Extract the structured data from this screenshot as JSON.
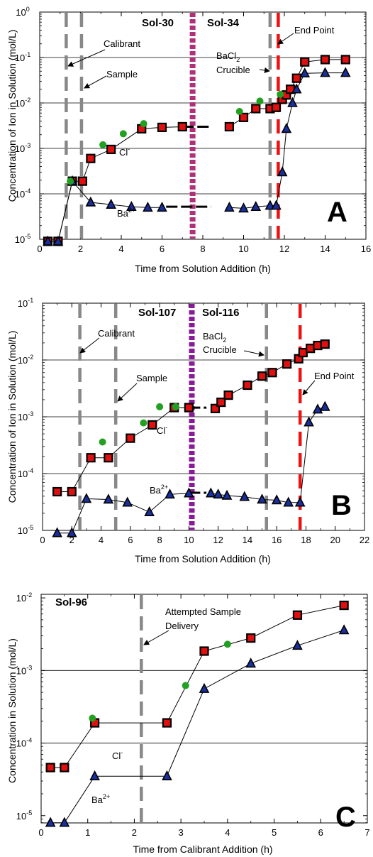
{
  "colors": {
    "cl_marker": "#e01010",
    "ba_marker": "#1a2f9e",
    "green_marker": "#22a022",
    "calibrant_line": "#888888",
    "end_line": "#ee1111",
    "sol_divider": "#b0307a",
    "sol_divider_b": "#8a1a9a"
  },
  "chart_data": [
    {
      "panel": "A",
      "type": "scatter",
      "ylabel": "Concentration of Ion in Solution (mol/L)",
      "xlabel": "Time from Solution Addition (h)",
      "xlim": [
        0,
        16
      ],
      "xticks": [
        0,
        2,
        4,
        6,
        8,
        10,
        12,
        14,
        16
      ],
      "ylim_log10": [
        -5,
        0
      ],
      "yticks": [
        {
          "exp": -5,
          "label": "10",
          "sup": "-5"
        },
        {
          "exp": -4,
          "label": "10",
          "sup": "-4"
        },
        {
          "exp": -3,
          "label": "10",
          "sup": "-3"
        },
        {
          "exp": -2,
          "label": "10",
          "sup": "-2"
        },
        {
          "exp": -1,
          "label": "10",
          "sup": "-1"
        },
        {
          "exp": 0,
          "label": "10",
          "sup": "0"
        }
      ],
      "gridlines_exp": [
        -4,
        -3,
        -2,
        -1
      ],
      "series": [
        {
          "name": "Cl",
          "label_sup": "-",
          "marker": "square",
          "segments": [
            [
              [
                0.4,
                9e-06
              ],
              [
                0.9,
                9e-06
              ],
              [
                1.6,
                0.00019
              ],
              [
                2.1,
                0.00019
              ],
              [
                2.5,
                0.0006
              ],
              [
                3.5,
                0.00095
              ],
              [
                5,
                0.0027
              ],
              [
                6,
                0.0029
              ],
              [
                7,
                0.003
              ]
            ],
            [
              [
                9.3,
                0.003
              ],
              [
                10,
                0.0048
              ],
              [
                10.6,
                0.0075
              ],
              [
                11.3,
                0.0075
              ],
              [
                11.6,
                0.008
              ],
              [
                11.9,
                0.012
              ],
              [
                12.1,
                0.015
              ],
              [
                12.3,
                0.02
              ],
              [
                12.6,
                0.035
              ],
              [
                13,
                0.08
              ],
              [
                14,
                0.09
              ],
              [
                15,
                0.09
              ]
            ]
          ]
        },
        {
          "name": "Ba",
          "label_sup": "2+",
          "marker": "triangle",
          "segments": [
            [
              [
                0.4,
                9e-06
              ],
              [
                0.9,
                9e-06
              ],
              [
                1.6,
                0.00019
              ],
              [
                2.5,
                6.5e-05
              ],
              [
                3.5,
                5.8e-05
              ],
              [
                4.5,
                5.2e-05
              ],
              [
                5.3,
                5e-05
              ],
              [
                6,
                5e-05
              ]
            ],
            [
              [
                9.3,
                5e-05
              ],
              [
                10,
                4.8e-05
              ],
              [
                10.6,
                5.2e-05
              ],
              [
                11.3,
                5.5e-05
              ],
              [
                11.6,
                5.5e-05
              ],
              [
                11.9,
                0.0003
              ],
              [
                12.1,
                0.0027
              ],
              [
                12.4,
                0.01
              ],
              [
                12.6,
                0.02
              ],
              [
                13,
                0.045
              ],
              [
                14,
                0.046
              ],
              [
                15,
                0.046
              ]
            ]
          ]
        },
        {
          "name": "",
          "marker": "circle",
          "segments": [
            [
              [
                1.5,
                0.00019
              ],
              [
                3.1,
                0.0012
              ],
              [
                4.1,
                0.0021
              ],
              [
                5.1,
                0.0035
              ],
              [
                9.8,
                0.0065
              ],
              [
                10.8,
                0.011
              ],
              [
                11.8,
                0.0155
              ]
            ]
          ]
        }
      ],
      "dash_segments": [
        {
          "series": "Cl",
          "x1": 7,
          "x2": 8.3,
          "y": 0.003
        },
        {
          "series": "Ba",
          "x1": 6.2,
          "x2": 8.4,
          "y": 5.2e-05
        }
      ],
      "vlines": [
        {
          "kind": "grey",
          "x": 1.3
        },
        {
          "kind": "grey",
          "x": 2.05
        },
        {
          "kind": "sol",
          "x": 7.5
        },
        {
          "kind": "grey",
          "x": 11.3
        },
        {
          "kind": "end",
          "x": 11.7
        }
      ],
      "annotations": {
        "sol_left": "Sol-30",
        "sol_right": "Sol-34",
        "calibrant": "Calibrant",
        "sample": "Sample",
        "end_point": "End Point",
        "bacl2_main": "BaCl",
        "bacl2_sub": "2",
        "crucible": "Crucible",
        "cl_label": "Cl",
        "cl_sup": "-",
        "ba_label": "Ba",
        "ba_sup": "2+",
        "panel_letter": "A"
      }
    },
    {
      "panel": "B",
      "type": "scatter",
      "ylabel": "Concentration of Ion in Solution (mol/L)",
      "xlabel": "Time from Solution Addition (h)",
      "xlim": [
        0,
        22
      ],
      "xticks": [
        0,
        2,
        4,
        6,
        8,
        10,
        12,
        14,
        16,
        18,
        20,
        22
      ],
      "ylim_log10": [
        -5,
        -1
      ],
      "yticks": [
        {
          "exp": -5,
          "label": "10",
          "sup": "-5"
        },
        {
          "exp": -4,
          "label": "10",
          "sup": "-4"
        },
        {
          "exp": -3,
          "label": "10",
          "sup": "-3"
        },
        {
          "exp": -2,
          "label": "10",
          "sup": "-2"
        },
        {
          "exp": -1,
          "label": "10",
          "sup": "-1"
        }
      ],
      "gridlines_exp": [
        -4,
        -3,
        -2
      ],
      "series": [
        {
          "name": "Cl",
          "label_sup": "-",
          "marker": "square",
          "segments": [
            [
              [
                1,
                4.8e-05
              ],
              [
                2,
                4.8e-05
              ],
              [
                3.3,
                0.00019
              ],
              [
                4.5,
                0.00019
              ],
              [
                6,
                0.00042
              ],
              [
                7.5,
                0.00072
              ],
              [
                9,
                0.00145
              ],
              [
                10,
                0.00145
              ]
            ],
            [
              [
                11.8,
                0.0014
              ],
              [
                12.2,
                0.0018
              ],
              [
                12.7,
                0.0024
              ],
              [
                14,
                0.0036
              ],
              [
                15,
                0.0052
              ],
              [
                15.7,
                0.006
              ],
              [
                16.7,
                0.0085
              ],
              [
                17.5,
                0.0105
              ],
              [
                17.8,
                0.0135
              ],
              [
                18.3,
                0.016
              ],
              [
                18.8,
                0.018
              ],
              [
                19.3,
                0.019
              ]
            ]
          ]
        },
        {
          "name": "Ba",
          "label_sup": "2+",
          "marker": "triangle",
          "segments": [
            [
              [
                1,
                9e-06
              ],
              [
                2,
                9e-06
              ],
              [
                3,
                3.6e-05
              ],
              [
                4.5,
                3.5e-05
              ],
              [
                5.8,
                3.1e-05
              ],
              [
                7.3,
                2.1e-05
              ],
              [
                8.7,
                4.3e-05
              ],
              [
                10,
                4.5e-05
              ]
            ],
            [
              [
                11.5,
                4.5e-05
              ],
              [
                12,
                4.3e-05
              ],
              [
                12.6,
                4.1e-05
              ],
              [
                13.8,
                3.9e-05
              ],
              [
                15,
                3.5e-05
              ],
              [
                16,
                3.4e-05
              ],
              [
                16.8,
                3.1e-05
              ],
              [
                17.6,
                3.1e-05
              ],
              [
                18.2,
                0.0008
              ],
              [
                18.8,
                0.00135
              ],
              [
                19.3,
                0.0015
              ]
            ]
          ]
        },
        {
          "name": "",
          "marker": "circle",
          "segments": [
            [
              [
                4.1,
                0.00036
              ],
              [
                6.9,
                0.00078
              ],
              [
                8,
                0.0015
              ],
              [
                9.1,
                0.0015
              ]
            ]
          ]
        }
      ],
      "dash_segments": [
        {
          "series": "Cl",
          "x1": 10,
          "x2": 11.2,
          "y": 0.00145
        },
        {
          "series": "Ba",
          "x1": 10,
          "x2": 11.2,
          "y": 4.6e-05
        }
      ],
      "vlines": [
        {
          "kind": "grey",
          "x": 2.55
        },
        {
          "kind": "grey",
          "x": 5
        },
        {
          "kind": "sol",
          "x": 10.2
        },
        {
          "kind": "grey",
          "x": 15.3
        },
        {
          "kind": "end",
          "x": 17.6
        }
      ],
      "annotations": {
        "sol_left": "Sol-107",
        "sol_right": "Sol-116",
        "calibrant": "Calibrant",
        "sample": "Sample",
        "end_point": "End Point",
        "bacl2_main": "BaCl",
        "bacl2_sub": "2",
        "crucible": "Crucible",
        "cl_label": "Cl",
        "cl_sup": "-",
        "ba_label": "Ba",
        "ba_sup": "2+",
        "panel_letter": "B"
      }
    },
    {
      "panel": "C",
      "type": "scatter",
      "ylabel": "Concentration in Solution (mol/L)",
      "xlabel": "Time from Calibrant Addition (h)",
      "xlim": [
        0,
        7
      ],
      "xticks": [
        0,
        1,
        2,
        3,
        4,
        5,
        6,
        7
      ],
      "ylim_log10": [
        -5.1,
        -1.95
      ],
      "yticks": [
        {
          "exp": -5,
          "label": "10",
          "sup": "-5"
        },
        {
          "exp": -4,
          "label": "10",
          "sup": "-4"
        },
        {
          "exp": -3,
          "label": "10",
          "sup": "-3"
        },
        {
          "exp": -2,
          "label": "10",
          "sup": "-2"
        }
      ],
      "gridlines_exp": [
        -4,
        -3
      ],
      "series": [
        {
          "name": "Cl",
          "label_sup": "-",
          "marker": "square",
          "segments": [
            [
              [
                0.2,
                4.6e-05
              ],
              [
                0.5,
                4.6e-05
              ],
              [
                1.15,
                0.00019
              ],
              [
                2.7,
                0.00019
              ],
              [
                3.5,
                0.00185
              ],
              [
                4.5,
                0.0028
              ],
              [
                5.5,
                0.0058
              ],
              [
                6.5,
                0.0079
              ]
            ]
          ]
        },
        {
          "name": "Ba",
          "label_sup": "2+",
          "marker": "triangle",
          "segments": [
            [
              [
                0.2,
                8e-06
              ],
              [
                0.5,
                8e-06
              ],
              [
                1.15,
                3.5e-05
              ],
              [
                2.7,
                3.5e-05
              ],
              [
                3.5,
                0.00056
              ],
              [
                4.5,
                0.00125
              ],
              [
                5.5,
                0.0022
              ],
              [
                6.5,
                0.0036
              ]
            ]
          ]
        },
        {
          "name": "",
          "marker": "circle",
          "segments": [
            [
              [
                1.1,
                0.00022
              ],
              [
                3.1,
                0.00062
              ],
              [
                4,
                0.0023
              ]
            ]
          ]
        }
      ],
      "dash_segments": [],
      "vlines": [
        {
          "kind": "grey",
          "x": 2.15
        }
      ],
      "annotations": {
        "sol_left": "Sol-96",
        "attempted_1": "Attempted Sample",
        "attempted_2": "Delivery",
        "cl_label": "Cl",
        "cl_sup": "-",
        "ba_label": "Ba",
        "ba_sup": "2+",
        "panel_letter": "C"
      }
    }
  ]
}
